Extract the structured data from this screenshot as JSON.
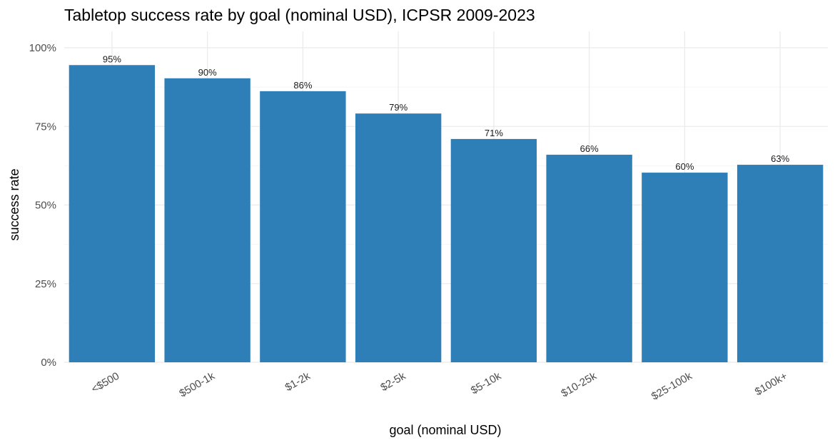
{
  "chart_data": {
    "type": "bar",
    "title": "Tabletop success rate by goal (nominal USD), ICPSR 2009-2023",
    "xlabel": "goal (nominal USD)",
    "ylabel": "success rate",
    "categories": [
      "<$500",
      "$500-1k",
      "$1-2k",
      "$2-5k",
      "$5-10k",
      "$10-25k",
      "$25-100k",
      "$100k+"
    ],
    "values": [
      0.945,
      0.903,
      0.862,
      0.791,
      0.71,
      0.66,
      0.603,
      0.628
    ],
    "data_labels": [
      "95%",
      "90%",
      "86%",
      "79%",
      "71%",
      "66%",
      "60%",
      "63%"
    ],
    "ylim": [
      0,
      1
    ],
    "yticks": [
      0,
      0.25,
      0.5,
      0.75,
      1
    ],
    "ytick_labels": [
      "0%",
      "25%",
      "50%",
      "75%",
      "100%"
    ],
    "bar_color": "#2e7fb8",
    "grid": true,
    "legend": "none"
  }
}
